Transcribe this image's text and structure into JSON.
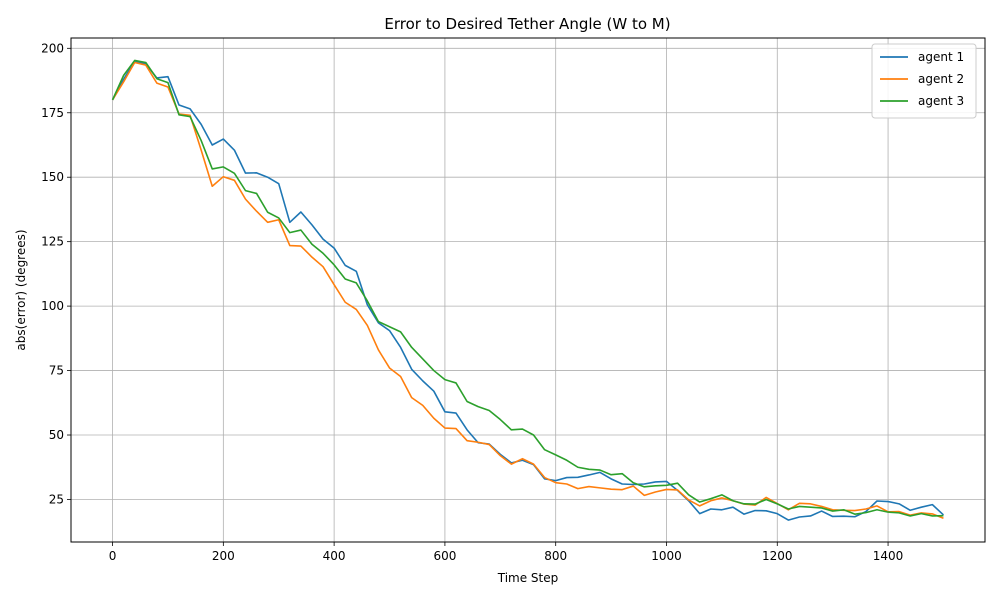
{
  "chart_data": {
    "type": "line",
    "title": "Error to Desired Tether Angle (W to M)",
    "xlabel": "Time Step",
    "ylabel": "abs(error) (degrees)",
    "xlim": [
      -75,
      1575
    ],
    "ylim": [
      8.5,
      204
    ],
    "xticks": [
      0,
      200,
      400,
      600,
      800,
      1000,
      1200,
      1400
    ],
    "yticks": [
      25,
      50,
      75,
      100,
      125,
      150,
      175,
      200
    ],
    "grid": true,
    "legend_position": "top-right",
    "x": [
      0,
      20,
      40,
      60,
      80,
      100,
      120,
      140,
      160,
      180,
      200,
      220,
      240,
      260,
      280,
      300,
      320,
      340,
      360,
      380,
      400,
      420,
      440,
      460,
      480,
      500,
      520,
      540,
      560,
      580,
      600,
      620,
      640,
      660,
      680,
      700,
      720,
      740,
      760,
      780,
      800,
      820,
      840,
      860,
      880,
      900,
      920,
      940,
      960,
      980,
      1000,
      1020,
      1040,
      1060,
      1080,
      1100,
      1120,
      1140,
      1160,
      1180,
      1200,
      1220,
      1240,
      1260,
      1280,
      1300,
      1320,
      1340,
      1360,
      1380,
      1400,
      1420,
      1440,
      1460,
      1480,
      1500
    ],
    "series": [
      {
        "name": "agent 1",
        "color": "#1f77b4",
        "values": [
          180,
          188,
          195,
          194,
          188.5,
          189,
          178,
          176.5,
          170.5,
          162.5,
          164.8,
          160.5,
          151.6,
          151.7,
          150,
          147.5,
          132.5,
          136.5,
          131.5,
          126,
          122.5,
          115.8,
          113.5,
          100.5,
          93.5,
          90.5,
          84,
          75.5,
          71,
          67,
          59,
          58.5,
          52,
          47,
          46.5,
          42.5,
          39.2,
          40.2,
          38.5,
          33,
          32.3,
          33.5,
          33.6,
          34.5,
          35.5,
          33,
          31,
          30.8,
          31,
          31.8,
          32,
          28.5,
          24.5,
          19.5,
          21.3,
          21,
          22,
          19.3,
          20.7,
          20.6,
          19.5,
          17,
          18.2,
          18.6,
          20.5,
          18.4,
          18.5,
          18.3,
          20.3,
          24.4,
          24.2,
          23.3,
          20.8,
          22,
          23,
          19
        ]
      },
      {
        "name": "agent 2",
        "color": "#ff7f0e",
        "values": [
          180,
          187,
          194.5,
          193.5,
          186.5,
          185,
          174.5,
          174,
          160.5,
          146.5,
          150.2,
          148.8,
          141.5,
          136.8,
          132.5,
          133.5,
          123.5,
          123.3,
          119,
          115.3,
          108.3,
          101.5,
          98.7,
          92.5,
          83,
          76,
          72.7,
          64.5,
          61.5,
          56.5,
          52.7,
          52.5,
          47.8,
          47.2,
          46.3,
          42,
          38.7,
          40.8,
          38.7,
          33.5,
          31.5,
          31,
          29.2,
          30,
          29.5,
          29,
          28.8,
          30.2,
          26.6,
          27.9,
          28.9,
          28.7,
          24.8,
          22.5,
          24.5,
          25.6,
          24.5,
          23.2,
          22.8,
          25.8,
          23.4,
          21,
          23.5,
          23.3,
          22.3,
          21,
          20.8,
          20.7,
          21.3,
          22.5,
          20.2,
          20.3,
          18.9,
          19.8,
          19.4,
          17.7
        ]
      },
      {
        "name": "agent 3",
        "color": "#2ca02c",
        "values": [
          180,
          189.5,
          195.3,
          194.5,
          188.2,
          186.7,
          174.2,
          173.5,
          164.2,
          153.2,
          154,
          151.5,
          144.8,
          143.7,
          136.4,
          134.2,
          128.5,
          129.5,
          124,
          120.5,
          116,
          110.5,
          109,
          102,
          94,
          92,
          90,
          84,
          79.5,
          75,
          71.5,
          70.2,
          63,
          61,
          59.5,
          56,
          52,
          52.3,
          50,
          44.3,
          42.3,
          40.2,
          37.5,
          36.7,
          36.4,
          34.6,
          35,
          31.5,
          29.9,
          30.3,
          30.5,
          31.3,
          26.8,
          24,
          25.3,
          26.8,
          24.5,
          23.3,
          23.2,
          25,
          23.3,
          21.3,
          22.3,
          22,
          21.7,
          20.5,
          21,
          19.3,
          19.9,
          21,
          20.1,
          19.8,
          18.6,
          19.5,
          18.6,
          18.7
        ]
      }
    ]
  }
}
